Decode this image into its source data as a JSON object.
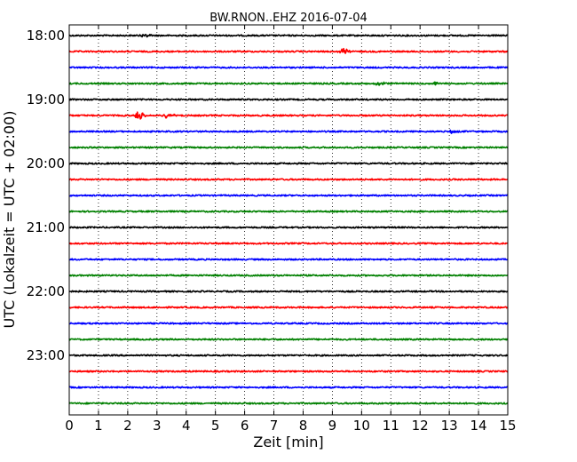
{
  "chart_data": {
    "type": "line",
    "title": "BW.RNON..EHZ 2016-07-04",
    "xlabel": "Zeit  [min]",
    "ylabel": "UTC (Lokalzeit = UTC + 02:00)",
    "xlim": [
      0,
      15
    ],
    "x_ticks": [
      "0",
      "1",
      "2",
      "3",
      "4",
      "5",
      "6",
      "7",
      "8",
      "9",
      "10",
      "11",
      "12",
      "13",
      "14",
      "15"
    ],
    "y_tick_labels": [
      "18:00",
      "19:00",
      "20:00",
      "21:00",
      "22:00",
      "23:00"
    ],
    "grid": "vertical dotted",
    "trace_interval_min": 15,
    "colors": [
      "#000000",
      "#ff0000",
      "#0000ff",
      "#008000"
    ],
    "series": [
      {
        "start": "18:00",
        "color": "#000000",
        "events": [
          {
            "x": 2.6,
            "amp": 0.55
          }
        ]
      },
      {
        "start": "18:15",
        "color": "#ff0000",
        "events": [
          {
            "x": 9.4,
            "amp": 0.7
          }
        ]
      },
      {
        "start": "18:30",
        "color": "#0000ff",
        "events": []
      },
      {
        "start": "18:45",
        "color": "#008000",
        "events": [
          {
            "x": 10.6,
            "amp": 0.6
          },
          {
            "x": 12.5,
            "amp": 0.35
          }
        ]
      },
      {
        "start": "19:00",
        "color": "#000000",
        "events": []
      },
      {
        "start": "19:15",
        "color": "#ff0000",
        "events": [
          {
            "x": 2.4,
            "amp": 1.0
          },
          {
            "x": 3.4,
            "amp": 0.9
          }
        ]
      },
      {
        "start": "19:30",
        "color": "#0000ff",
        "events": [
          {
            "x": 13.1,
            "amp": 0.45
          }
        ]
      },
      {
        "start": "19:45",
        "color": "#008000",
        "events": []
      },
      {
        "start": "20:00",
        "color": "#000000",
        "events": []
      },
      {
        "start": "20:15",
        "color": "#ff0000",
        "events": []
      },
      {
        "start": "20:30",
        "color": "#0000ff",
        "events": []
      },
      {
        "start": "20:45",
        "color": "#008000",
        "events": []
      },
      {
        "start": "21:00",
        "color": "#000000",
        "events": []
      },
      {
        "start": "21:15",
        "color": "#ff0000",
        "events": []
      },
      {
        "start": "21:30",
        "color": "#0000ff",
        "events": []
      },
      {
        "start": "21:45",
        "color": "#008000",
        "events": []
      },
      {
        "start": "22:00",
        "color": "#000000",
        "events": []
      },
      {
        "start": "22:15",
        "color": "#ff0000",
        "events": []
      },
      {
        "start": "22:30",
        "color": "#0000ff",
        "events": []
      },
      {
        "start": "22:45",
        "color": "#008000",
        "events": []
      },
      {
        "start": "23:00",
        "color": "#000000",
        "events": []
      },
      {
        "start": "23:15",
        "color": "#ff0000",
        "events": []
      },
      {
        "start": "23:30",
        "color": "#0000ff",
        "events": []
      },
      {
        "start": "23:45",
        "color": "#008000",
        "events": []
      }
    ]
  }
}
